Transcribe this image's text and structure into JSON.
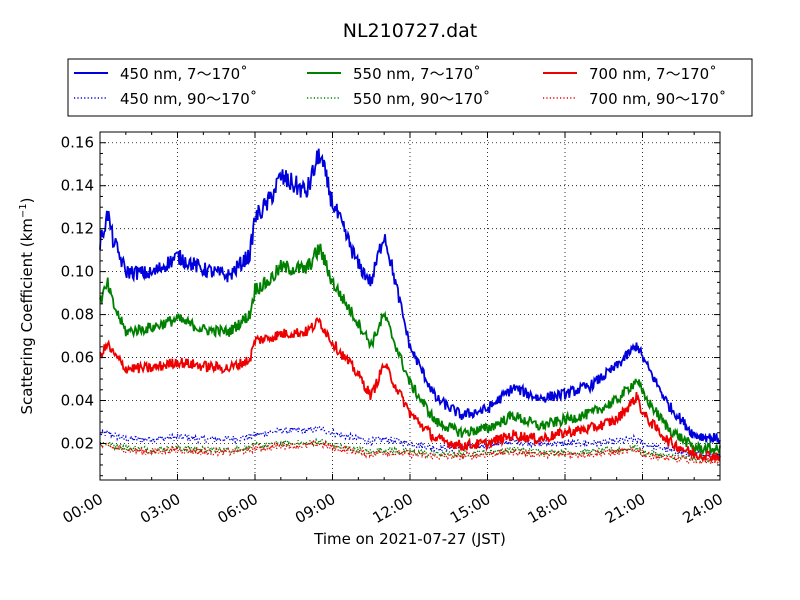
{
  "chart_data": {
    "type": "line",
    "title": "NL210727.dat",
    "xlabel": "Time on 2021-07-27 (JST)",
    "ylabel_main": "Scattering Coefficient (km",
    "ylabel_sup": "−1",
    "ylabel_close": ")",
    "xlim": [
      0,
      24
    ],
    "ylim": [
      0.003,
      0.165
    ],
    "x_ticks": [
      0,
      3,
      6,
      9,
      12,
      15,
      18,
      21,
      24
    ],
    "x_tick_labels": [
      "00:00",
      "03:00",
      "06:00",
      "09:00",
      "12:00",
      "15:00",
      "18:00",
      "21:00",
      "24:00"
    ],
    "y_ticks": [
      0.02,
      0.04,
      0.06,
      0.08,
      0.1,
      0.12,
      0.14,
      0.16
    ],
    "y_tick_labels": [
      "0.02",
      "0.04",
      "0.06",
      "0.08",
      "0.10",
      "0.12",
      "0.14",
      "0.16"
    ],
    "grid": true,
    "legend_placement": "top",
    "x": [
      0,
      0.3,
      0.5,
      1,
      2,
      3,
      4,
      5,
      5.8,
      6,
      6.5,
      7,
      8,
      8.5,
      9,
      10,
      10.5,
      11,
      12,
      13,
      14,
      15,
      16,
      17,
      18,
      19,
      20,
      20.8,
      21,
      22,
      23,
      24
    ],
    "series": [
      {
        "name": "450 nm, 7～170˚",
        "color": "#0000dd",
        "style": "solid",
        "values": [
          0.113,
          0.127,
          0.115,
          0.1,
          0.099,
          0.107,
          0.101,
          0.098,
          0.108,
          0.125,
          0.132,
          0.144,
          0.137,
          0.155,
          0.132,
          0.103,
          0.095,
          0.118,
          0.065,
          0.041,
          0.033,
          0.036,
          0.046,
          0.041,
          0.043,
          0.047,
          0.056,
          0.066,
          0.06,
          0.038,
          0.024,
          0.022
        ]
      },
      {
        "name": "550 nm, 7～170˚",
        "color": "#008000",
        "style": "solid",
        "values": [
          0.086,
          0.094,
          0.085,
          0.072,
          0.074,
          0.078,
          0.073,
          0.072,
          0.08,
          0.092,
          0.095,
          0.102,
          0.101,
          0.111,
          0.095,
          0.076,
          0.066,
          0.08,
          0.048,
          0.03,
          0.025,
          0.027,
          0.033,
          0.028,
          0.031,
          0.034,
          0.04,
          0.05,
          0.043,
          0.027,
          0.018,
          0.017
        ]
      },
      {
        "name": "700 nm, 7～170˚",
        "color": "#ee0000",
        "style": "solid",
        "values": [
          0.061,
          0.066,
          0.062,
          0.055,
          0.055,
          0.058,
          0.056,
          0.055,
          0.059,
          0.068,
          0.069,
          0.071,
          0.072,
          0.077,
          0.067,
          0.052,
          0.042,
          0.057,
          0.034,
          0.022,
          0.019,
          0.02,
          0.024,
          0.022,
          0.025,
          0.027,
          0.031,
          0.042,
          0.034,
          0.021,
          0.015,
          0.014
        ]
      },
      {
        "name": "450 nm, 90～170˚",
        "color": "#0000dd",
        "style": "dotted",
        "values": [
          0.024,
          0.025,
          0.024,
          0.022,
          0.022,
          0.023,
          0.022,
          0.022,
          0.023,
          0.024,
          0.025,
          0.026,
          0.026,
          0.027,
          0.025,
          0.022,
          0.021,
          0.022,
          0.02,
          0.018,
          0.018,
          0.019,
          0.021,
          0.02,
          0.02,
          0.02,
          0.021,
          0.022,
          0.02,
          0.017,
          0.015,
          0.015
        ]
      },
      {
        "name": "550 nm, 90～170˚",
        "color": "#008000",
        "style": "dotted",
        "values": [
          0.02,
          0.02,
          0.019,
          0.018,
          0.017,
          0.018,
          0.017,
          0.017,
          0.018,
          0.019,
          0.019,
          0.02,
          0.02,
          0.021,
          0.019,
          0.017,
          0.016,
          0.017,
          0.016,
          0.015,
          0.015,
          0.016,
          0.017,
          0.016,
          0.016,
          0.016,
          0.017,
          0.018,
          0.016,
          0.014,
          0.013,
          0.013
        ]
      },
      {
        "name": "700 nm, 90～170˚",
        "color": "#ee0000",
        "style": "dotted",
        "values": [
          0.019,
          0.019,
          0.018,
          0.017,
          0.016,
          0.017,
          0.016,
          0.016,
          0.017,
          0.018,
          0.018,
          0.019,
          0.019,
          0.02,
          0.018,
          0.016,
          0.015,
          0.016,
          0.015,
          0.014,
          0.014,
          0.015,
          0.016,
          0.015,
          0.015,
          0.015,
          0.016,
          0.017,
          0.015,
          0.013,
          0.012,
          0.012
        ]
      }
    ]
  }
}
